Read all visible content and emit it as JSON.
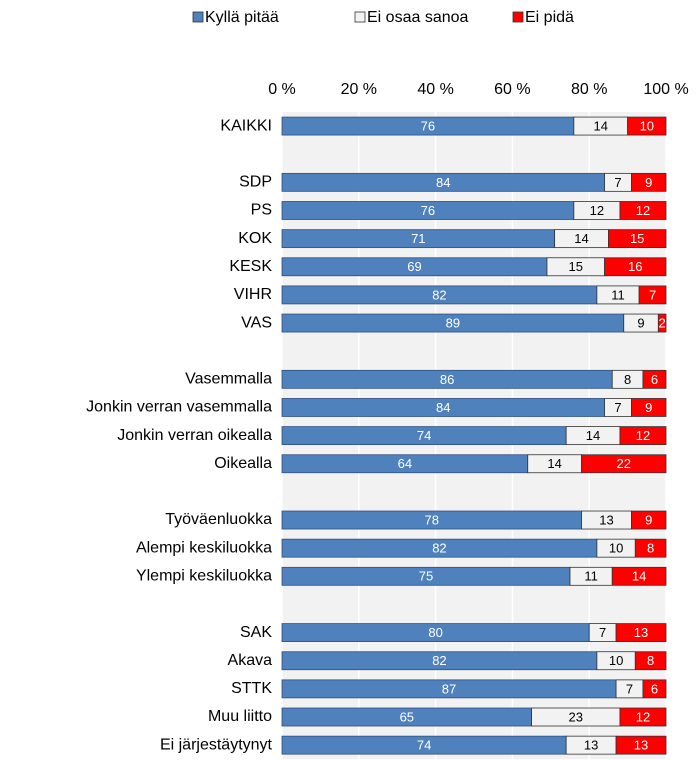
{
  "chart_data": {
    "type": "stacked-bar",
    "orientation": "horizontal",
    "categories": [
      "KAIKKI",
      null,
      "SDP",
      "PS",
      "KOK",
      "KESK",
      "VIHR",
      "VAS",
      null,
      "Vasemmalla",
      "Jonkin verran vasemmalla",
      "Jonkin verran oikealla",
      "Oikealla",
      null,
      "Työväenluokka",
      "Alempi keskiluokka",
      "Ylempi keskiluokka",
      null,
      "SAK",
      "Akava",
      "STTK",
      "Muu liitto",
      "Ei järjestäytynyt"
    ],
    "series": [
      {
        "name": "Kyllä pitää",
        "color": "#4f81bd",
        "values": [
          76,
          null,
          84,
          76,
          71,
          69,
          82,
          89,
          null,
          86,
          84,
          74,
          64,
          null,
          78,
          82,
          75,
          null,
          80,
          82,
          87,
          65,
          74
        ]
      },
      {
        "name": "Ei osaa sanoa",
        "color": "#f2f2f2",
        "values": [
          14,
          null,
          7,
          12,
          14,
          15,
          11,
          9,
          null,
          8,
          7,
          14,
          14,
          null,
          13,
          10,
          11,
          null,
          7,
          10,
          7,
          23,
          13
        ]
      },
      {
        "name": "Ei pidä",
        "color": "#ff0000",
        "values": [
          10,
          null,
          9,
          12,
          15,
          16,
          7,
          2,
          null,
          6,
          9,
          12,
          22,
          null,
          9,
          8,
          14,
          null,
          13,
          8,
          6,
          12,
          13
        ]
      }
    ],
    "xlim": [
      0,
      100
    ],
    "xticks": [
      {
        "value": 0,
        "label": "0 %"
      },
      {
        "value": 20,
        "label": "20 %"
      },
      {
        "value": 40,
        "label": "40 %"
      },
      {
        "value": 60,
        "label": "60 %"
      },
      {
        "value": 80,
        "label": "80 %"
      },
      {
        "value": 100,
        "label": "100 %"
      }
    ],
    "grid": true,
    "legend": "top"
  }
}
